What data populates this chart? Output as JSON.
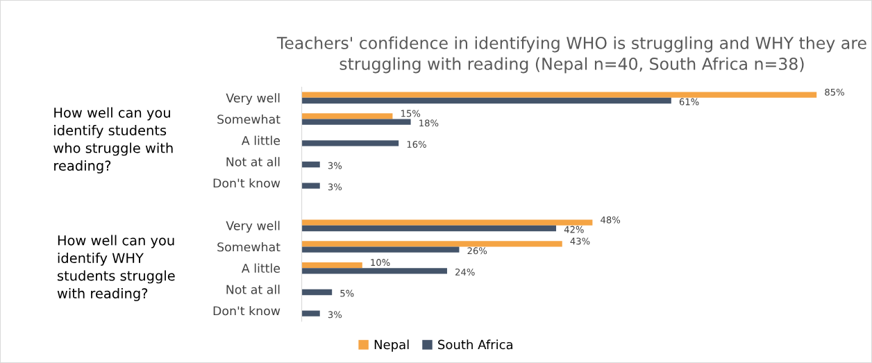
{
  "chart_data": {
    "type": "bar",
    "orientation": "horizontal",
    "title": "Teachers' confidence in identifying WHO is struggling and WHY they are\nstruggling with reading (Nepal n=40, South Africa n=38)",
    "categories": [
      "Very well",
      "Somewhat",
      "A little",
      "Not at all",
      "Don't know",
      null,
      "Very well",
      "Somewhat",
      "A little",
      "Not at all",
      "Don't know"
    ],
    "series": [
      {
        "name": "Nepal",
        "color": "#f5a444",
        "values": [
          85,
          15,
          null,
          null,
          null,
          null,
          48,
          43,
          10,
          null,
          null
        ],
        "value_labels": [
          "85%",
          "15%",
          null,
          null,
          null,
          null,
          "48%",
          "43%",
          "10%",
          null,
          null
        ]
      },
      {
        "name": "South Africa",
        "color": "#44546a",
        "values": [
          61,
          18,
          16,
          3,
          3,
          null,
          42,
          26,
          24,
          5,
          3
        ],
        "value_labels": [
          "61%",
          "18%",
          "16%",
          "3%",
          "3%",
          null,
          "42%",
          "26%",
          "24%",
          "5%",
          "3%"
        ]
      }
    ],
    "annotations": [
      "How well can you\nidentify students\nwho struggle with\nreading?",
      "How well can you\nidentify WHY\nstudents struggle\nwith reading?"
    ],
    "legend": "bottom",
    "grid": false
  }
}
